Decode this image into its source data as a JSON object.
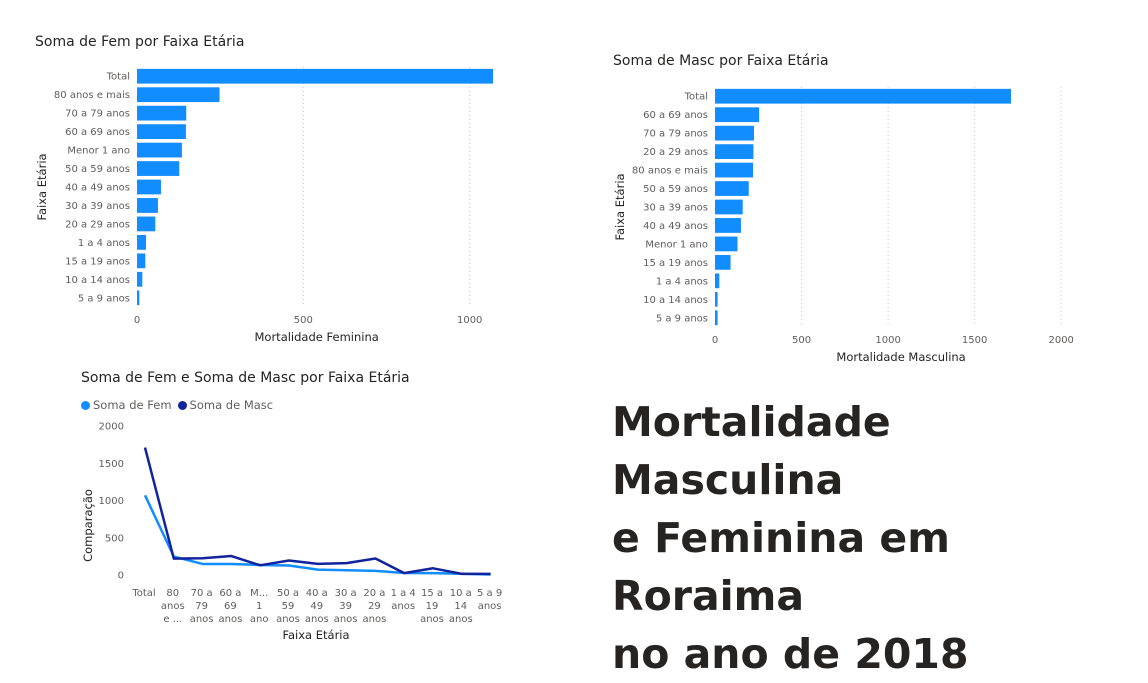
{
  "colors": {
    "fem": "#118DFF",
    "masc": "#12239E",
    "grid": "#c8c6c4"
  },
  "chart_data": [
    {
      "type": "bar",
      "orientation": "horizontal",
      "title": "Soma de Fem por Faixa Etária",
      "xlabel": "Mortalidade Feminina",
      "ylabel": "Faixa Etária",
      "xlim": [
        0,
        1080
      ],
      "xticks": [
        0,
        500,
        1000
      ],
      "categories": [
        "Total",
        "80 anos e mais",
        "70 a 79 anos",
        "60 a 69 anos",
        "Menor 1 ano",
        "50 a 59 anos",
        "40 a 49 anos",
        "30 a 39 anos",
        "20 a 29 anos",
        "1 a 4 anos",
        "15 a 19 anos",
        "10 a 14 anos",
        "5 a 9 anos"
      ],
      "values": [
        1070,
        248,
        148,
        147,
        135,
        127,
        72,
        63,
        55,
        27,
        25,
        16,
        7
      ],
      "grid": true
    },
    {
      "type": "bar",
      "orientation": "horizontal",
      "title": "Soma de Masc por Faixa Etária",
      "xlabel": "Mortalidade Masculina",
      "ylabel": "Faixa Etária",
      "xlim": [
        0,
        2150
      ],
      "xticks": [
        0,
        500,
        1000,
        1500,
        2000
      ],
      "categories": [
        "Total",
        "60 a 69 anos",
        "70 a 79 anos",
        "20 a 29 anos",
        "80 anos e mais",
        "50 a 59 anos",
        "30 a 39 anos",
        "40 a 49 anos",
        "Menor 1 ano",
        "15 a 19 anos",
        "1 a 4 anos",
        "10 a 14 anos",
        "5 a 9 anos"
      ],
      "values": [
        1710,
        255,
        225,
        222,
        220,
        195,
        160,
        150,
        130,
        90,
        25,
        15,
        15
      ],
      "grid": true
    },
    {
      "type": "line",
      "title": "Soma de Fem e Soma de Masc por Faixa Etária",
      "xlabel": "Faixa Etária",
      "ylabel": "Comparação",
      "ylim": [
        0,
        2000
      ],
      "yticks": [
        0,
        500,
        1000,
        1500,
        2000
      ],
      "categories": [
        "Total",
        "80 anos e mais",
        "70 a 79 anos",
        "60 a 69 anos",
        "Menor 1 ano",
        "50 a 59 anos",
        "40 a 49 anos",
        "30 a 39 anos",
        "20 a 29 anos",
        "1 a 4 anos",
        "15 a 19 anos",
        "10 a 14 anos",
        "5 a 9 anos"
      ],
      "tick_labels": [
        [
          "Total"
        ],
        [
          "80",
          "anos",
          "e ..."
        ],
        [
          "70 a",
          "79",
          "anos"
        ],
        [
          "60 a",
          "69",
          "anos"
        ],
        [
          "M...",
          "1",
          "ano"
        ],
        [
          "50 a",
          "59",
          "anos"
        ],
        [
          "40 a",
          "49",
          "anos"
        ],
        [
          "30 a",
          "39",
          "anos"
        ],
        [
          "20 a",
          "29",
          "anos"
        ],
        [
          "1 a 4",
          "anos"
        ],
        [
          "15 a",
          "19",
          "anos"
        ],
        [
          "10 a",
          "14",
          "anos"
        ],
        [
          "5 a 9",
          "anos"
        ]
      ],
      "legend": "top-left",
      "series": [
        {
          "name": "Soma de Fem",
          "values": [
            1070,
            248,
            148,
            147,
            135,
            127,
            72,
            63,
            55,
            27,
            25,
            16,
            7
          ]
        },
        {
          "name": "Soma de Masc",
          "values": [
            1710,
            220,
            225,
            255,
            130,
            195,
            150,
            160,
            222,
            25,
            90,
            15,
            15
          ]
        }
      ],
      "grid": false
    }
  ],
  "headline": {
    "line1": "Mortalidade Masculina",
    "line2": "e Feminina em Roraima",
    "line3": "no ano de 2018"
  }
}
